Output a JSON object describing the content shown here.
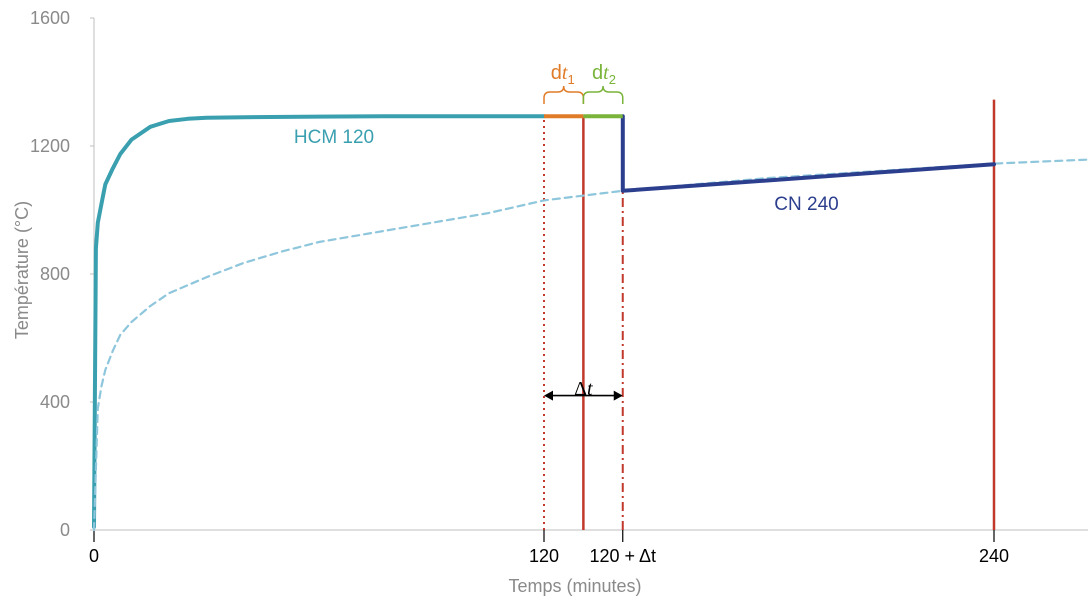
{
  "chart_data": {
    "type": "line",
    "xlabel": "Temps (minutes)",
    "ylabel": "Température (°C)",
    "xlim": [
      0,
      270
    ],
    "ylim": [
      0,
      1600
    ],
    "y_ticks": [
      0,
      400,
      800,
      1200,
      1600
    ],
    "y_tick_labels": [
      "0",
      "400",
      "800",
      "1200",
      "1600"
    ],
    "x_ticks": [
      {
        "value": 0,
        "label": "0"
      },
      {
        "value": 120,
        "label": "120"
      },
      {
        "value": 141,
        "label": "120 + Δt"
      },
      {
        "value": 240,
        "label": "240"
      }
    ],
    "grid": false,
    "series": [
      {
        "name": "HCM 120",
        "style": "solid",
        "color": "#3aa0b0",
        "x": [
          0,
          0.5,
          1,
          2,
          3,
          5,
          7,
          10,
          15,
          20,
          25,
          30,
          40,
          60,
          80,
          100,
          120
        ],
        "y": [
          10,
          880,
          960,
          1020,
          1080,
          1130,
          1175,
          1220,
          1260,
          1278,
          1285,
          1288,
          1290,
          1292,
          1293,
          1293,
          1293
        ]
      },
      {
        "name": "",
        "style": "dashed",
        "color": "#8ec6dc",
        "x": [
          0,
          1,
          2,
          3,
          5,
          7,
          10,
          15,
          20,
          30,
          40,
          50,
          60,
          75,
          90,
          105,
          120,
          141,
          160,
          180,
          200,
          220,
          240,
          260,
          270
        ],
        "y": [
          0,
          380,
          450,
          500,
          560,
          610,
          650,
          700,
          740,
          790,
          835,
          870,
          900,
          930,
          960,
          990,
          1030,
          1060,
          1080,
          1100,
          1115,
          1130,
          1145,
          1155,
          1160
        ]
      },
      {
        "name": "CN 240",
        "style": "solid",
        "color": "#2c3f8e",
        "x": [
          141,
          141,
          141,
          240
        ],
        "y": [
          1293,
          1240,
          1060,
          1143
        ]
      }
    ],
    "segments": [
      {
        "name": "dt1",
        "color": "#e07b28",
        "x": [
          120,
          130.5
        ],
        "y": 1293
      },
      {
        "name": "dt2",
        "color": "#7ab43a",
        "x": [
          130.5,
          141
        ],
        "y": 1293
      }
    ],
    "vertical_lines": [
      {
        "x": 120,
        "style": "dotted",
        "color": "#c0392b",
        "top": 1293
      },
      {
        "x": 130.5,
        "style": "solid",
        "color": "#c0392b",
        "top": 1293
      },
      {
        "x": 141,
        "style": "dashdot",
        "color": "#c0392b",
        "top": 1293
      },
      {
        "x": 240,
        "style": "solid",
        "color": "#c0392b",
        "top": 1345
      }
    ],
    "annotations": [
      {
        "name": "hcm-label",
        "text": "HCM 120",
        "color": "#3aa0b0",
        "x": 64,
        "y": 1210
      },
      {
        "name": "cn-label",
        "text": "CN 240",
        "color": "#2c3f8e",
        "x": 190,
        "y": 1000
      },
      {
        "name": "delta-t",
        "text": "Δt",
        "color": "#000000",
        "x": 130.5,
        "y": 440
      },
      {
        "name": "dt1",
        "text": "dt1",
        "color": "#e07b28",
        "x": 125,
        "y": 1440
      },
      {
        "name": "dt2",
        "text": "dt2",
        "color": "#7ab43a",
        "x": 136,
        "y": 1440
      }
    ],
    "delta_arrow": {
      "x_from": 120,
      "x_to": 141,
      "y": 420
    }
  }
}
